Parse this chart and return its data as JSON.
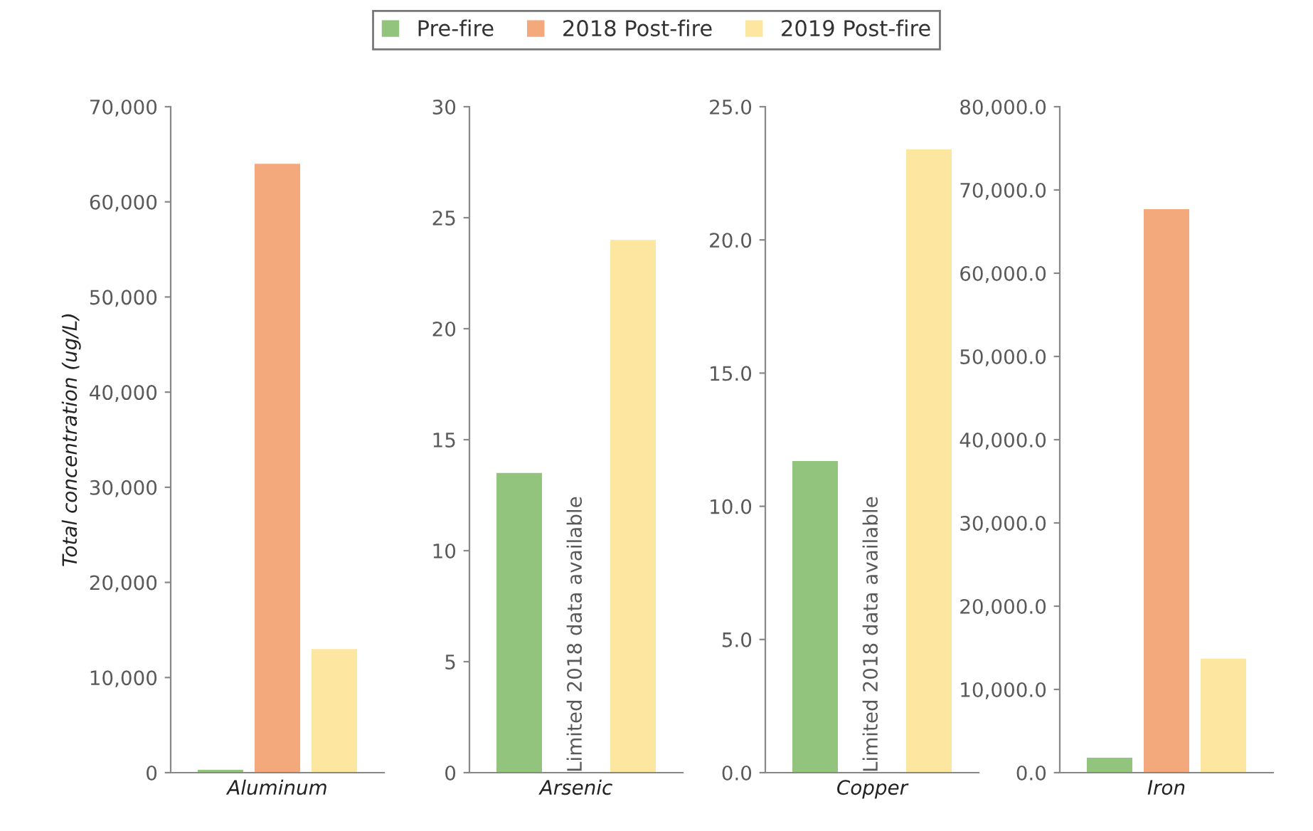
{
  "chart_data": [
    {
      "type": "bar",
      "categories": [
        "Aluminum"
      ],
      "ylabel": "Total concentration (ug/L)",
      "legend": "top",
      "ylim": [
        0,
        70000
      ],
      "yticks": [
        {
          "value": 0,
          "label": "0"
        },
        {
          "value": 10000,
          "label": "10,000"
        },
        {
          "value": 20000,
          "label": "20,000"
        },
        {
          "value": 30000,
          "label": "30,000"
        },
        {
          "value": 40000,
          "label": "40,000"
        },
        {
          "value": 50000,
          "label": "50,000"
        },
        {
          "value": 60000,
          "label": "60,000"
        },
        {
          "value": 70000,
          "label": "70,000"
        }
      ],
      "series": [
        {
          "name": "Pre-fire",
          "color": "#93c47d",
          "values": [
            300
          ]
        },
        {
          "name": "2018 Post-fire",
          "color": "#f4a97c",
          "values": [
            64000
          ]
        },
        {
          "name": "2019 Post-fire",
          "color": "#fde6a0",
          "values": [
            13000
          ]
        }
      ]
    },
    {
      "type": "bar",
      "categories": [
        "Arsenic"
      ],
      "ylim": [
        0,
        30
      ],
      "yticks": [
        0,
        5,
        10,
        15,
        20,
        25,
        30
      ],
      "annotations": [
        "Limited 2018 data available"
      ],
      "series": [
        {
          "color": "#93c47d",
          "values": [
            13.5
          ]
        },
        {
          "values": [
            null
          ]
        },
        {
          "color": "#fde6a0",
          "values": [
            24
          ]
        }
      ]
    },
    {
      "type": "bar",
      "categories": [
        "Copper"
      ],
      "ylim": [
        0,
        25
      ],
      "yticks": [
        {
          "value": 0,
          "label": "0.0"
        },
        {
          "value": 5,
          "label": "5.0"
        },
        {
          "value": 10,
          "label": "10.0"
        },
        {
          "value": 15,
          "label": "15.0"
        },
        {
          "value": 20,
          "label": "20.0"
        },
        {
          "value": 25,
          "label": "25.0"
        }
      ],
      "annotations": [
        "Limited 2018 data available"
      ],
      "series": [
        {
          "color": "#93c47d",
          "values": [
            11.7
          ]
        },
        {
          "values": [
            null
          ]
        },
        {
          "color": "#fde6a0",
          "values": [
            23.4
          ]
        }
      ]
    },
    {
      "type": "bar",
      "categories": [
        "Iron"
      ],
      "ylim": [
        0,
        80000
      ],
      "yticks": [
        {
          "value": 0,
          "label": "0.0"
        },
        {
          "value": 10000,
          "label": "10,000.0"
        },
        {
          "value": 20000,
          "label": "20,000.0"
        },
        {
          "value": 30000,
          "label": "30,000.0"
        },
        {
          "value": 40000,
          "label": "40,000.0"
        },
        {
          "value": 50000,
          "label": "50,000.0"
        },
        {
          "value": 60000,
          "label": "60,000.0"
        },
        {
          "value": 70000,
          "label": "70,000.0"
        },
        {
          "value": 80000,
          "label": "80,000.0"
        }
      ],
      "series": [
        {
          "color": "#93c47d",
          "values": [
            1800
          ]
        },
        {
          "color": "#f4a97c",
          "values": [
            67700
          ]
        },
        {
          "color": "#fde6a0",
          "values": [
            13700
          ]
        }
      ]
    }
  ]
}
